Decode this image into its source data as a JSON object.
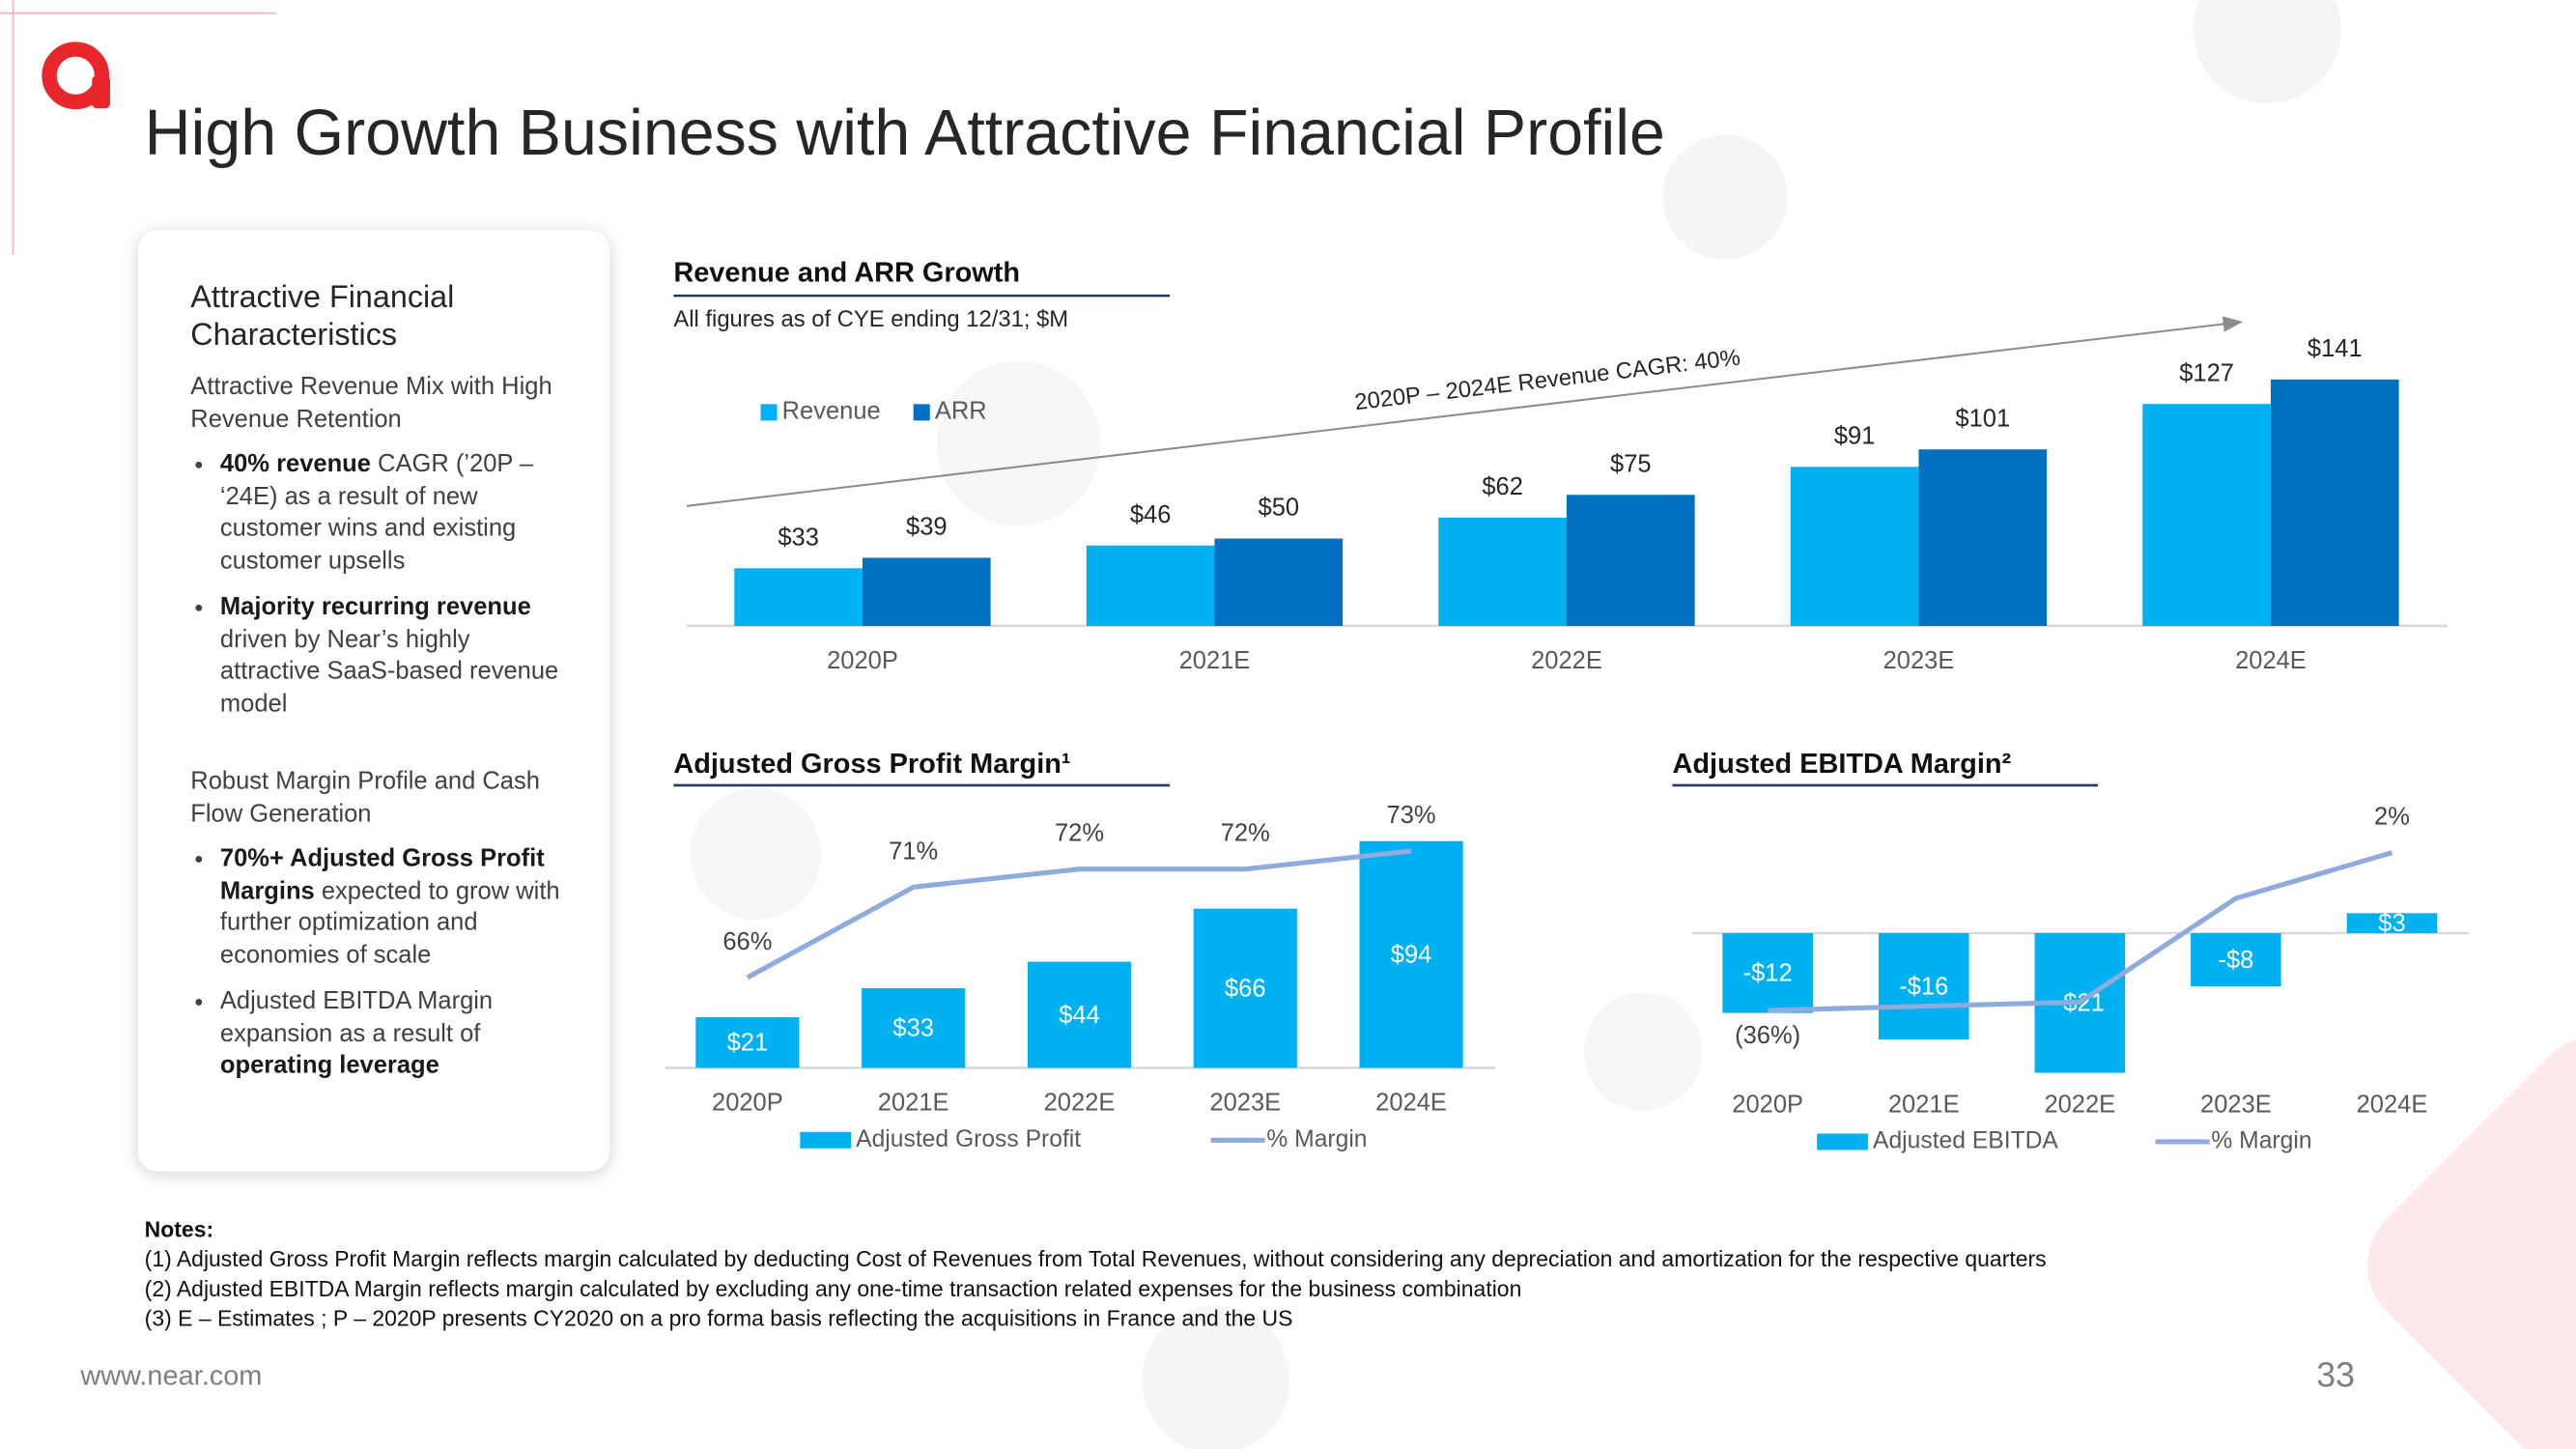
{
  "header": {
    "title": "High Growth Business with Attractive Financial Profile"
  },
  "card": {
    "title": "Attractive Financial Characteristics",
    "sections": [
      {
        "heading": "Attractive Revenue Mix with High Revenue Retention",
        "bullets": [
          [
            {
              "text": "40% revenue",
              "bold": true
            },
            {
              "text": " CAGR (’20P – ‘24E) as a result of new customer wins and existing customer upsells"
            }
          ],
          [
            {
              "text": "Majority recurring revenue",
              "bold": true
            },
            {
              "text": " driven by Near’s highly attractive SaaS-based revenue model"
            }
          ]
        ]
      },
      {
        "heading": "Robust Margin Profile and Cash Flow Generation",
        "bullets": [
          [
            {
              "text": "70%+ Adjusted Gross Profit Margins",
              "bold": true
            },
            {
              "text": " expected to grow with further optimization and economies of scale"
            }
          ],
          [
            {
              "text": "Adjusted EBITDA Margin expansion as a result of "
            },
            {
              "text": "operating leverage",
              "bold": true
            }
          ]
        ]
      }
    ]
  },
  "chart_data": [
    {
      "type": "bar",
      "title": "Revenue and ARR Growth",
      "subtitle": "All figures as of CYE ending 12/31; $M",
      "annotation": "2020P – 2024E Revenue CAGR: 40%",
      "legend": "top-left",
      "categories": [
        "2020P",
        "2021E",
        "2022E",
        "2023E",
        "2024E"
      ],
      "series": [
        {
          "name": "Revenue",
          "color": "#00b0f0",
          "values": [
            33,
            46,
            62,
            91,
            127
          ],
          "value_labels": [
            "$33",
            "$46",
            "$62",
            "$91",
            "$127"
          ]
        },
        {
          "name": "ARR",
          "color": "#0070c0",
          "values": [
            39,
            50,
            75,
            101,
            141
          ],
          "value_labels": [
            "$39",
            "$50",
            "$75",
            "$101",
            "$141"
          ]
        }
      ]
    },
    {
      "type": "combo",
      "title": "Adjusted Gross Profit Margin¹",
      "legend": "bottom",
      "categories": [
        "2020P",
        "2021E",
        "2022E",
        "2023E",
        "2024E"
      ],
      "series": [
        {
          "name": "Adjusted Gross Profit",
          "type": "bar",
          "color": "#00b0f0",
          "values": [
            21,
            33,
            44,
            66,
            94
          ],
          "value_labels": [
            "$21",
            "$33",
            "$44",
            "$66",
            "$94"
          ]
        },
        {
          "name": "% Margin",
          "type": "line",
          "axis": "y2",
          "color": "#8faadc",
          "values": [
            66,
            71,
            72,
            72,
            73
          ],
          "value_labels": [
            "66%",
            "71%",
            "72%",
            "72%",
            "73%"
          ]
        }
      ]
    },
    {
      "type": "combo",
      "title": "Adjusted EBITDA Margin²",
      "legend": "bottom",
      "categories": [
        "2020P",
        "2021E",
        "2022E",
        "2023E",
        "2024E"
      ],
      "series": [
        {
          "name": "Adjusted EBITDA",
          "type": "bar",
          "color": "#00b0f0",
          "values": [
            -12,
            -16,
            -21,
            -8,
            3
          ],
          "value_labels": [
            "-$12",
            "-$16",
            "-$21",
            "-$8",
            "$3"
          ]
        },
        {
          "name": "% Margin",
          "type": "line",
          "axis": "y2",
          "color": "#8faadc",
          "values": [
            -36,
            -35,
            -34,
            -9,
            2
          ],
          "value_labels": [
            "(36%)",
            null,
            null,
            null,
            "2%"
          ]
        }
      ]
    }
  ],
  "notes": {
    "title": "Notes:",
    "lines": [
      "(1) Adjusted Gross Profit Margin reflects margin calculated by deducting Cost of Revenues from Total Revenues, without considering any depreciation and amortization for the respective quarters",
      "(2) Adjusted EBITDA Margin reflects margin calculated by excluding any one-time transaction related expenses for the business combination",
      "(3) E – Estimates ; P – 2020P presents CY2020 on a pro forma basis reflecting the acquisitions in France and the US"
    ]
  },
  "footer": {
    "url": "www.near.com",
    "page": "33"
  }
}
